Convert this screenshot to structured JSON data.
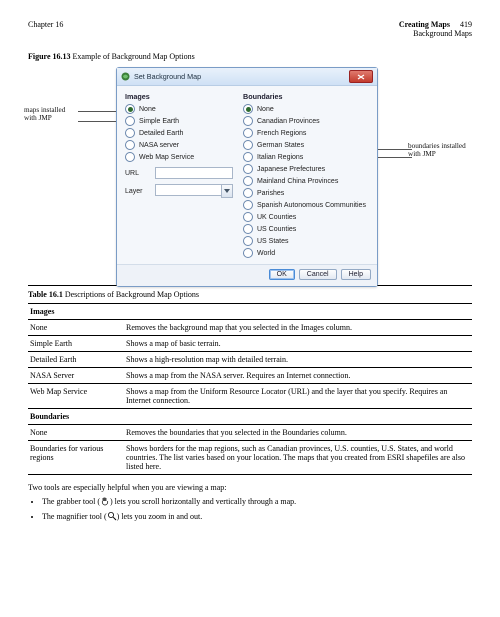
{
  "header": {
    "chapter": "Chapter 16",
    "title": "Creating Maps",
    "subtitle": "Background Maps",
    "page": "419"
  },
  "figure": {
    "label": "Figure 16.13",
    "caption": "Example of Background Map Options",
    "callout_left": "maps installed with JMP",
    "callout_right": "boundaries installed with JMP",
    "dialog": {
      "title": "Set Background Map",
      "images_heading": "Images",
      "boundaries_heading": "Boundaries",
      "images": [
        {
          "label": "None",
          "selected": true
        },
        {
          "label": "Simple Earth",
          "selected": false
        },
        {
          "label": "Detailed Earth",
          "selected": false
        },
        {
          "label": "NASA server",
          "selected": false
        },
        {
          "label": "Web Map Service",
          "selected": false
        }
      ],
      "url_label": "URL",
      "layer_label": "Layer",
      "boundaries": [
        {
          "label": "None",
          "selected": true
        },
        {
          "label": "Canadian Provinces",
          "selected": false
        },
        {
          "label": "French Regions",
          "selected": false
        },
        {
          "label": "German States",
          "selected": false
        },
        {
          "label": "Italian Regions",
          "selected": false
        },
        {
          "label": "Japanese Prefectures",
          "selected": false
        },
        {
          "label": "Mainland China Provinces",
          "selected": false
        },
        {
          "label": "Parishes",
          "selected": false
        },
        {
          "label": "Spanish Autonomous Communities",
          "selected": false
        },
        {
          "label": "UK Counties",
          "selected": false
        },
        {
          "label": "US Counties",
          "selected": false
        },
        {
          "label": "US States",
          "selected": false
        },
        {
          "label": "World",
          "selected": false
        }
      ],
      "ok": "OK",
      "cancel": "Cancel",
      "help": "Help"
    }
  },
  "table": {
    "label": "Table 16.1",
    "caption": "Descriptions of Background Map Options",
    "sections": [
      {
        "heading": "Images",
        "rows": [
          {
            "name": "None",
            "desc": "Removes the background map that you selected in the Images column."
          },
          {
            "name": "Simple Earth",
            "desc": "Shows a map of basic terrain."
          },
          {
            "name": "Detailed Earth",
            "desc": "Shows a high-resolution map with detailed terrain."
          },
          {
            "name": "NASA Server",
            "desc": "Shows a map from the NASA server. Requires an Internet connection."
          },
          {
            "name": "Web Map Service",
            "desc": "Shows a map from the Uniform Resource Locator (URL) and the layer that you specify. Requires an Internet connection."
          }
        ]
      },
      {
        "heading": "Boundaries",
        "rows": [
          {
            "name": "None",
            "desc": "Removes the boundaries that you selected in the Boundaries column."
          },
          {
            "name": "Boundaries for various regions",
            "desc": "Shows borders for the map regions, such as Canadian provinces, U.S. counties, U.S. States, and world countries. The list varies based on your location. The maps that you created from ESRI shapefiles are also listed here."
          }
        ]
      }
    ]
  },
  "para": "Two tools are especially helpful when you are viewing a map:",
  "bullets": [
    {
      "pre": "The grabber tool (",
      "post": ") lets you scroll horizontally and vertically through a map."
    },
    {
      "pre": "The magnifier tool (",
      "post": ") lets you zoom in and out."
    }
  ]
}
